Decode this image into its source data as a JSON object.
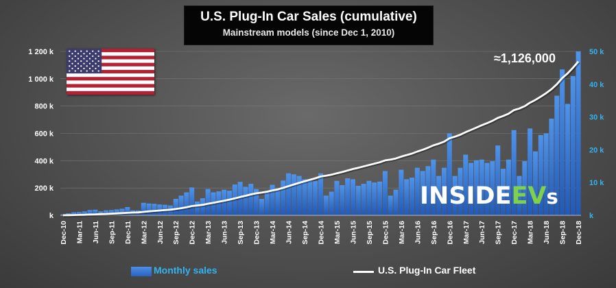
{
  "title": "U.S. Plug-In Car Sales (cumulative)",
  "subtitle": "Mainstream models (since Dec 1, 2010)",
  "annotation": "≈1,126,000",
  "logo": {
    "main": "INSIDE",
    "ev": "EV",
    "suffix": "s"
  },
  "colors": {
    "bars": "#2d6cc9",
    "line": "#ffffff",
    "right_axis": "#33b3f0",
    "left_axis": "#ffffff"
  },
  "legend": {
    "bars": "Monthly sales",
    "line": "U.S. Plug-In Car Fleet",
    "placement": "bottom"
  },
  "chart_data": {
    "type": "bar+line",
    "x": [
      "Dec-10",
      "Jan-11",
      "Feb-11",
      "Mar-11",
      "Apr-11",
      "May-11",
      "Jun-11",
      "Jul-11",
      "Aug-11",
      "Sep-11",
      "Oct-11",
      "Nov-11",
      "Dec-11",
      "Jan-12",
      "Feb-12",
      "Mar-12",
      "Apr-12",
      "May-12",
      "Jun-12",
      "Jul-12",
      "Aug-12",
      "Sep-12",
      "Oct-12",
      "Nov-12",
      "Dec-12",
      "Jan-13",
      "Feb-13",
      "Mar-13",
      "Apr-13",
      "May-13",
      "Jun-13",
      "Jul-13",
      "Aug-13",
      "Sep-13",
      "Oct-13",
      "Nov-13",
      "Dec-13",
      "Jan-14",
      "Feb-14",
      "Mar-14",
      "Apr-14",
      "May-14",
      "Jun-14",
      "Jul-14",
      "Aug-14",
      "Sep-14",
      "Oct-14",
      "Nov-14",
      "Dec-14",
      "Jan-15",
      "Feb-15",
      "Mar-15",
      "Apr-15",
      "May-15",
      "Jun-15",
      "Jul-15",
      "Aug-15",
      "Sep-15",
      "Oct-15",
      "Nov-15",
      "Dec-15",
      "Jan-16",
      "Feb-16",
      "Mar-16",
      "Apr-16",
      "May-16",
      "Jun-16",
      "Jul-16",
      "Aug-16",
      "Sep-16",
      "Oct-16",
      "Nov-16",
      "Dec-16",
      "Jan-17",
      "Feb-17",
      "Mar-17",
      "Apr-17",
      "May-17",
      "Jun-17",
      "Jul-17",
      "Aug-17",
      "Sep-17",
      "Oct-17",
      "Nov-17",
      "Dec-17",
      "Jan-18",
      "Feb-18",
      "Mar-18",
      "Apr-18",
      "May-18",
      "Jun-18",
      "Jul-18",
      "Aug-18",
      "Sep-18",
      "Oct-18",
      "Nov-18",
      "Dec-18"
    ],
    "x_tick_labels": [
      "Dec-10",
      "Mar-11",
      "Jun-11",
      "Sep-11",
      "Dec-11",
      "Mar-12",
      "Jun-12",
      "Sep-12",
      "Dec-12",
      "Mar-13",
      "Jun-13",
      "Sep-13",
      "Dec-13",
      "Mar-14",
      "Jun-14",
      "Sep-14",
      "Dec-14",
      "Mar-15",
      "Jun-15",
      "Sep-15",
      "Dec-15",
      "Mar-16",
      "Jun-16",
      "Sep-16",
      "Dec-16",
      "Mar-17",
      "Jun-17",
      "Sep-17",
      "Dec-17",
      "Mar-18",
      "Jun-18",
      "Sep-18",
      "Dec-18"
    ],
    "series": [
      {
        "name": "Monthly sales",
        "type": "bar",
        "axis": "right",
        "values": [
          0.3,
          0.6,
          0.9,
          1.0,
          1.2,
          1.6,
          1.7,
          1.2,
          1.5,
          1.6,
          1.8,
          2.0,
          2.5,
          1.5,
          1.5,
          3.8,
          3.6,
          3.5,
          3.3,
          3.2,
          3.0,
          5.0,
          6.0,
          7.0,
          8.5,
          4.2,
          5.2,
          8.0,
          7.0,
          7.3,
          7.8,
          7.5,
          9.4,
          10.2,
          8.7,
          9.6,
          8.0,
          5.0,
          7.0,
          9.3,
          8.2,
          10.6,
          12.8,
          12.5,
          12.0,
          11.0,
          10.8,
          10.5,
          12.8,
          6.0,
          7.2,
          10.5,
          9.2,
          11.3,
          11.0,
          9.0,
          9.6,
          10.5,
          10.0,
          10.3,
          13.5,
          6.0,
          7.8,
          13.9,
          11.0,
          11.5,
          14.5,
          13.5,
          15.0,
          17.0,
          12.0,
          14.5,
          25.0,
          12.0,
          14.5,
          18.5,
          16.0,
          16.8,
          17.0,
          16.0,
          16.5,
          21.3,
          14.2,
          17.0,
          26.0,
          12.0,
          16.5,
          26.5,
          19.5,
          24.5,
          25.0,
          29.5,
          36.5,
          44.5,
          34.0,
          42.5,
          50.0
        ]
      },
      {
        "name": "U.S. Plug-In Car Fleet",
        "type": "line",
        "axis": "left",
        "values": [
          0.3,
          1,
          2,
          3,
          4,
          6,
          7,
          9,
          10,
          12,
          14,
          16,
          18,
          20,
          21,
          25,
          29,
          32,
          35,
          38,
          41,
          46,
          52,
          59,
          68,
          72,
          77,
          85,
          92,
          99,
          107,
          115,
          124,
          134,
          143,
          153,
          161,
          166,
          173,
          182,
          190,
          201,
          214,
          226,
          238,
          249,
          260,
          271,
          284,
          290,
          297,
          308,
          317,
          328,
          339,
          348,
          358,
          368,
          378,
          388,
          402,
          408,
          416,
          430,
          441,
          452,
          467,
          480,
          495,
          512,
          524,
          539,
          564,
          576,
          590,
          609,
          625,
          642,
          659,
          675,
          692,
          713,
          727,
          744,
          770,
          782,
          799,
          825,
          845,
          869,
          894,
          924,
          960,
          1005,
          1039,
          1081,
          1126
        ]
      }
    ],
    "y_left": {
      "ticks": [
        "k",
        "200 k",
        "400 k",
        "600 k",
        "800 k",
        "1 000 k",
        "1 200 k"
      ],
      "range": [
        0,
        1200
      ]
    },
    "y_right": {
      "ticks": [
        "k",
        "10 k",
        "20 k",
        "30 k",
        "40 k",
        "50 k"
      ],
      "range": [
        0,
        50
      ]
    },
    "grid": true
  }
}
